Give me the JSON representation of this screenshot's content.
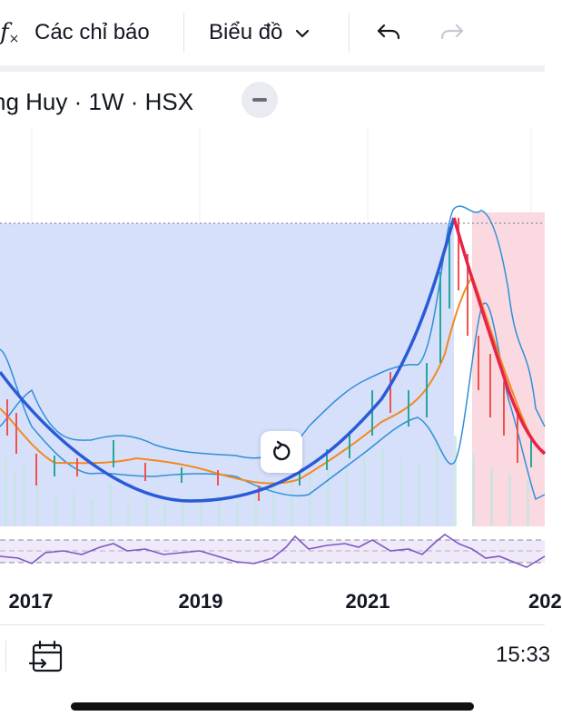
{
  "toolbar": {
    "fx_icon": "fx-icon",
    "indicators_label": "Các chỉ báo",
    "chart_type_label": "Biểu đồ",
    "chevron": "chevron-down-icon",
    "undo": "undo-icon",
    "redo": "redo-icon"
  },
  "legend": {
    "title": "ng Huy · 1W · HSX"
  },
  "xaxis": {
    "ticks": [
      "2017",
      "2019",
      "2021",
      "202"
    ]
  },
  "bottom": {
    "time": "15:33",
    "date_range_icon": "calendar-range-icon"
  },
  "colors": {
    "accent_blue": "#2962ff",
    "area_blue": "#d6e0fb",
    "area_red": "#fbd9e1",
    "band": "#2f8fd8",
    "ma_orange": "#f28a1e",
    "up": "#26a69a",
    "down": "#ef5350",
    "rsi": "#7e57c2",
    "rsi_bg": "#efe9fa"
  }
}
